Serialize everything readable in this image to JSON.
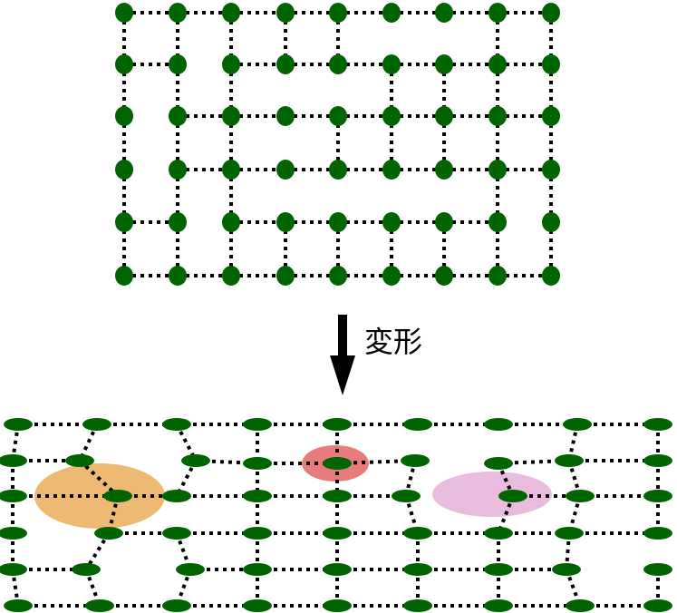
{
  "arrow_label": "変形",
  "colors": {
    "node": "#006400",
    "edge": "#000000",
    "highlight_orange": "#e8a850",
    "highlight_red": "#e05050",
    "highlight_pink": "#e0a0d0"
  }
}
